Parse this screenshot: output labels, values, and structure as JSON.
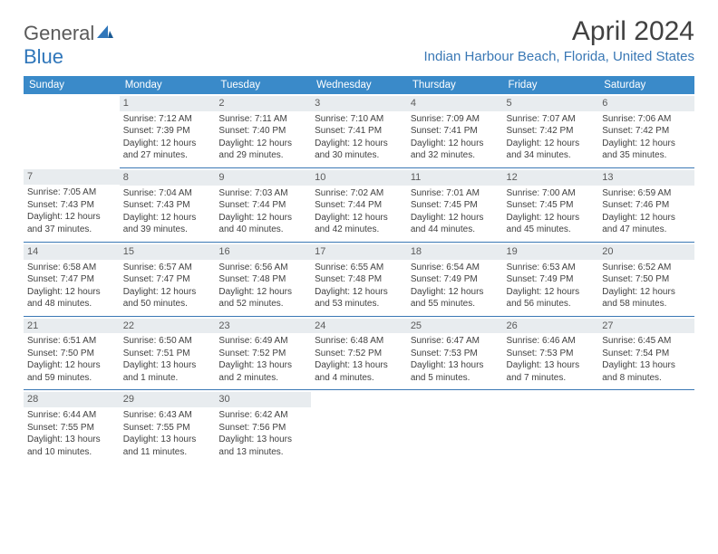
{
  "logo": {
    "text1": "General",
    "text2": "Blue"
  },
  "title": "April 2024",
  "location": "Indian Harbour Beach, Florida, United States",
  "dayHeaders": [
    "Sunday",
    "Monday",
    "Tuesday",
    "Wednesday",
    "Thursday",
    "Friday",
    "Saturday"
  ],
  "colors": {
    "headerBg": "#3a8ac9",
    "headerText": "#ffffff",
    "accent": "#3a78b5",
    "dayNumBg": "#e8ecef",
    "bodyText": "#414141"
  },
  "weeks": [
    [
      {
        "num": "",
        "lines": []
      },
      {
        "num": "1",
        "lines": [
          "Sunrise: 7:12 AM",
          "Sunset: 7:39 PM",
          "Daylight: 12 hours",
          "and 27 minutes."
        ]
      },
      {
        "num": "2",
        "lines": [
          "Sunrise: 7:11 AM",
          "Sunset: 7:40 PM",
          "Daylight: 12 hours",
          "and 29 minutes."
        ]
      },
      {
        "num": "3",
        "lines": [
          "Sunrise: 7:10 AM",
          "Sunset: 7:41 PM",
          "Daylight: 12 hours",
          "and 30 minutes."
        ]
      },
      {
        "num": "4",
        "lines": [
          "Sunrise: 7:09 AM",
          "Sunset: 7:41 PM",
          "Daylight: 12 hours",
          "and 32 minutes."
        ]
      },
      {
        "num": "5",
        "lines": [
          "Sunrise: 7:07 AM",
          "Sunset: 7:42 PM",
          "Daylight: 12 hours",
          "and 34 minutes."
        ]
      },
      {
        "num": "6",
        "lines": [
          "Sunrise: 7:06 AM",
          "Sunset: 7:42 PM",
          "Daylight: 12 hours",
          "and 35 minutes."
        ]
      }
    ],
    [
      {
        "num": "7",
        "lines": [
          "Sunrise: 7:05 AM",
          "Sunset: 7:43 PM",
          "Daylight: 12 hours",
          "and 37 minutes."
        ]
      },
      {
        "num": "8",
        "lines": [
          "Sunrise: 7:04 AM",
          "Sunset: 7:43 PM",
          "Daylight: 12 hours",
          "and 39 minutes."
        ]
      },
      {
        "num": "9",
        "lines": [
          "Sunrise: 7:03 AM",
          "Sunset: 7:44 PM",
          "Daylight: 12 hours",
          "and 40 minutes."
        ]
      },
      {
        "num": "10",
        "lines": [
          "Sunrise: 7:02 AM",
          "Sunset: 7:44 PM",
          "Daylight: 12 hours",
          "and 42 minutes."
        ]
      },
      {
        "num": "11",
        "lines": [
          "Sunrise: 7:01 AM",
          "Sunset: 7:45 PM",
          "Daylight: 12 hours",
          "and 44 minutes."
        ]
      },
      {
        "num": "12",
        "lines": [
          "Sunrise: 7:00 AM",
          "Sunset: 7:45 PM",
          "Daylight: 12 hours",
          "and 45 minutes."
        ]
      },
      {
        "num": "13",
        "lines": [
          "Sunrise: 6:59 AM",
          "Sunset: 7:46 PM",
          "Daylight: 12 hours",
          "and 47 minutes."
        ]
      }
    ],
    [
      {
        "num": "14",
        "lines": [
          "Sunrise: 6:58 AM",
          "Sunset: 7:47 PM",
          "Daylight: 12 hours",
          "and 48 minutes."
        ]
      },
      {
        "num": "15",
        "lines": [
          "Sunrise: 6:57 AM",
          "Sunset: 7:47 PM",
          "Daylight: 12 hours",
          "and 50 minutes."
        ]
      },
      {
        "num": "16",
        "lines": [
          "Sunrise: 6:56 AM",
          "Sunset: 7:48 PM",
          "Daylight: 12 hours",
          "and 52 minutes."
        ]
      },
      {
        "num": "17",
        "lines": [
          "Sunrise: 6:55 AM",
          "Sunset: 7:48 PM",
          "Daylight: 12 hours",
          "and 53 minutes."
        ]
      },
      {
        "num": "18",
        "lines": [
          "Sunrise: 6:54 AM",
          "Sunset: 7:49 PM",
          "Daylight: 12 hours",
          "and 55 minutes."
        ]
      },
      {
        "num": "19",
        "lines": [
          "Sunrise: 6:53 AM",
          "Sunset: 7:49 PM",
          "Daylight: 12 hours",
          "and 56 minutes."
        ]
      },
      {
        "num": "20",
        "lines": [
          "Sunrise: 6:52 AM",
          "Sunset: 7:50 PM",
          "Daylight: 12 hours",
          "and 58 minutes."
        ]
      }
    ],
    [
      {
        "num": "21",
        "lines": [
          "Sunrise: 6:51 AM",
          "Sunset: 7:50 PM",
          "Daylight: 12 hours",
          "and 59 minutes."
        ]
      },
      {
        "num": "22",
        "lines": [
          "Sunrise: 6:50 AM",
          "Sunset: 7:51 PM",
          "Daylight: 13 hours",
          "and 1 minute."
        ]
      },
      {
        "num": "23",
        "lines": [
          "Sunrise: 6:49 AM",
          "Sunset: 7:52 PM",
          "Daylight: 13 hours",
          "and 2 minutes."
        ]
      },
      {
        "num": "24",
        "lines": [
          "Sunrise: 6:48 AM",
          "Sunset: 7:52 PM",
          "Daylight: 13 hours",
          "and 4 minutes."
        ]
      },
      {
        "num": "25",
        "lines": [
          "Sunrise: 6:47 AM",
          "Sunset: 7:53 PM",
          "Daylight: 13 hours",
          "and 5 minutes."
        ]
      },
      {
        "num": "26",
        "lines": [
          "Sunrise: 6:46 AM",
          "Sunset: 7:53 PM",
          "Daylight: 13 hours",
          "and 7 minutes."
        ]
      },
      {
        "num": "27",
        "lines": [
          "Sunrise: 6:45 AM",
          "Sunset: 7:54 PM",
          "Daylight: 13 hours",
          "and 8 minutes."
        ]
      }
    ],
    [
      {
        "num": "28",
        "lines": [
          "Sunrise: 6:44 AM",
          "Sunset: 7:55 PM",
          "Daylight: 13 hours",
          "and 10 minutes."
        ]
      },
      {
        "num": "29",
        "lines": [
          "Sunrise: 6:43 AM",
          "Sunset: 7:55 PM",
          "Daylight: 13 hours",
          "and 11 minutes."
        ]
      },
      {
        "num": "30",
        "lines": [
          "Sunrise: 6:42 AM",
          "Sunset: 7:56 PM",
          "Daylight: 13 hours",
          "and 13 minutes."
        ]
      },
      {
        "num": "",
        "lines": []
      },
      {
        "num": "",
        "lines": []
      },
      {
        "num": "",
        "lines": []
      },
      {
        "num": "",
        "lines": []
      }
    ]
  ]
}
